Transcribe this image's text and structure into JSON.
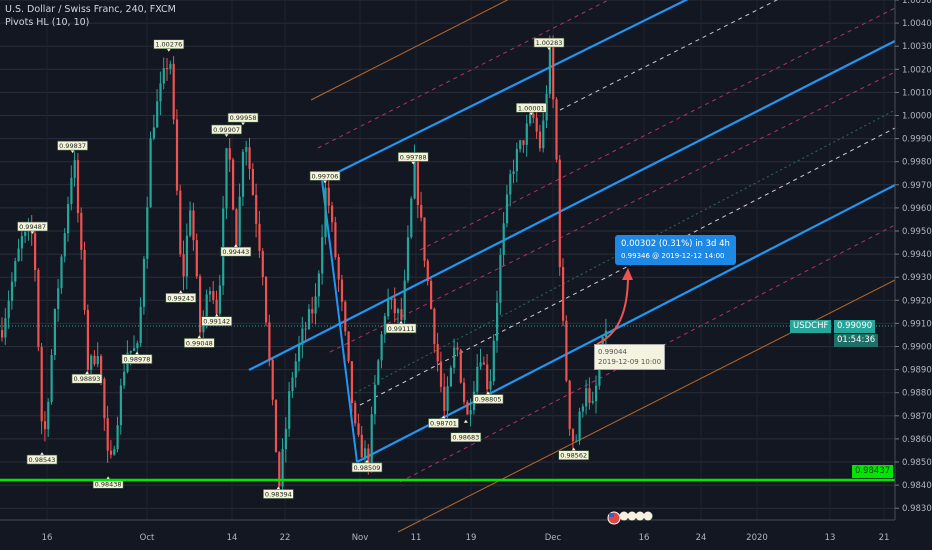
{
  "header": {
    "symbol_title": "U.S. Dollar / Swiss Franc, 240, FXCM",
    "indicator": "Pivots HL (10, 10)"
  },
  "price_axis": {
    "labels": [
      "1.00500",
      "1.00400",
      "1.00300",
      "1.00200",
      "1.00100",
      "1.00000",
      "0.99900",
      "0.99800",
      "0.99700",
      "0.99600",
      "0.99500",
      "0.99400",
      "0.99300",
      "0.99200",
      "0.99100",
      "0.99000",
      "0.98900",
      "0.98800",
      "0.98700",
      "0.98600",
      "0.98500",
      "0.98400",
      "0.98300"
    ],
    "symbol_tag": "USDCHF",
    "last_price": "0.99090",
    "countdown": "01:54:36",
    "support_price": "0.98437"
  },
  "time_axis": {
    "ticks": [
      {
        "label": "16",
        "date": "2019-09-16"
      },
      {
        "label": "Oct",
        "date": "2019-10-01"
      },
      {
        "label": "14",
        "date": "2019-10-14"
      },
      {
        "label": "22",
        "date": "2019-10-22"
      },
      {
        "label": "Nov",
        "date": "2019-11-01"
      },
      {
        "label": "11",
        "date": "2019-11-11"
      },
      {
        "label": "19",
        "date": "2019-11-19"
      },
      {
        "label": "Dec",
        "date": "2019-12-01"
      },
      {
        "label": "16",
        "date": "2019-12-16"
      },
      {
        "label": "24",
        "date": "2019-12-24"
      },
      {
        "label": "2020",
        "date": "2020-01-01"
      },
      {
        "label": "13",
        "date": "2020-01-13"
      },
      {
        "label": "21",
        "date": "2020-01-21"
      }
    ]
  },
  "projection": {
    "line1": "0.00302 (0.31%) in 3d 4h",
    "line2": "0.99346 @ 2019-12-12  14:00",
    "start_price": "0.99044",
    "start_date": "2019-12-09 10:00"
  },
  "colors": {
    "up": "#26a69a",
    "down": "#ef5350",
    "channel": "#2196f3",
    "support": "#00e600",
    "last_price": "#26a69a",
    "fib_pink": "#b0306a",
    "fib_orange": "#b8692a",
    "tooltip": "#1e88e5"
  },
  "chart_data": {
    "type": "candlestick",
    "symbol": "USDCHF",
    "timeframe": "240",
    "ylim": [
      0.9825,
      1.005
    ],
    "grid": true,
    "path": [
      [
        "2019-09-09 00:00",
        0.99071
      ],
      [
        "2019-09-12 00:00",
        0.99461
      ],
      [
        "2019-09-13 20:00",
        0.99487
      ],
      [
        "2019-09-15 06:00",
        0.98543
      ],
      [
        "2019-09-17 06:00",
        0.99201
      ],
      [
        "2019-09-19 20:00",
        0.99837
      ],
      [
        "2019-09-21 18:00",
        0.99071
      ],
      [
        "2019-09-22 00:00",
        0.98893
      ],
      [
        "2019-09-23 12:00",
        0.99
      ],
      [
        "2019-09-25 04:00",
        0.98438
      ],
      [
        "2019-09-27 18:00",
        0.98985
      ],
      [
        "2019-09-29 12:00",
        0.98978
      ],
      [
        "2019-10-01 12:00",
        0.99937
      ],
      [
        "2019-10-04 08:00",
        1.00276
      ],
      [
        "2019-10-06 04:00",
        0.99243
      ],
      [
        "2019-10-07 12:00",
        0.99634
      ],
      [
        "2019-10-09 00:00",
        0.99048
      ],
      [
        "2019-10-10 12:00",
        0.99288
      ],
      [
        "2019-10-11 16:00",
        0.99142
      ],
      [
        "2019-10-13 04:00",
        0.99907
      ],
      [
        "2019-10-14 14:00",
        0.99443
      ],
      [
        "2019-10-15 16:00",
        0.99958
      ],
      [
        "2019-10-18 12:00",
        0.99331
      ],
      [
        "2019-10-20 02:00",
        0.98682
      ],
      [
        "2019-10-21 00:00",
        0.98394
      ],
      [
        "2019-10-22 16:00",
        0.98855
      ],
      [
        "2019-10-24 00:00",
        0.99028
      ],
      [
        "2019-10-26 00:00",
        0.99201
      ],
      [
        "2019-10-27 08:00",
        0.99706
      ],
      [
        "2019-10-29 08:00",
        0.99201
      ],
      [
        "2019-10-31 08:00",
        0.98595
      ],
      [
        "2019-11-02 06:00",
        0.98509
      ],
      [
        "2019-11-03 16:00",
        0.98855
      ],
      [
        "2019-11-05 12:00",
        0.99201
      ],
      [
        "2019-11-08 08:00",
        0.99111
      ],
      [
        "2019-11-10 12:00",
        0.99788
      ],
      [
        "2019-11-12 08:00",
        0.99331
      ],
      [
        "2019-11-15 00:00",
        0.98701
      ],
      [
        "2019-11-16 16:00",
        0.99028
      ],
      [
        "2019-11-18 06:00",
        0.98683
      ],
      [
        "2019-11-20 04:00",
        0.98985
      ],
      [
        "2019-11-21 12:00",
        0.98805
      ],
      [
        "2019-11-23 06:00",
        0.99418
      ],
      [
        "2019-11-24 18:00",
        0.99764
      ],
      [
        "2019-11-27 20:00",
        1.00001
      ],
      [
        "2019-11-29 02:00",
        0.99851
      ],
      [
        "2019-11-30 10:00",
        1.00283
      ],
      [
        "2019-12-01 08:00",
        0.99851
      ],
      [
        "2019-12-02 04:00",
        0.99201
      ],
      [
        "2019-12-03 12:00",
        0.98682
      ],
      [
        "2019-12-04 10:00",
        0.98562
      ],
      [
        "2019-12-06 06:00",
        0.98855
      ],
      [
        "2019-12-07 02:00",
        0.98682
      ],
      [
        "2019-12-09 14:00",
        0.9909
      ]
    ],
    "pivots": [
      {
        "label": "0.99487",
        "price": 0.99487,
        "date": "2019-09-13 20:00",
        "type": "high"
      },
      {
        "label": "0.98543",
        "price": 0.98543,
        "date": "2019-09-15 06:00",
        "type": "low"
      },
      {
        "label": "0.99837",
        "price": 0.99837,
        "date": "2019-09-19 20:00",
        "type": "high"
      },
      {
        "label": "0.98893",
        "price": 0.98893,
        "date": "2019-09-22 00:00",
        "type": "low"
      },
      {
        "label": "0.98438",
        "price": 0.98438,
        "date": "2019-09-25 04:00",
        "type": "low"
      },
      {
        "label": "0.98978",
        "price": 0.98978,
        "date": "2019-09-29 12:00",
        "type": "low"
      },
      {
        "label": "1.00276",
        "price": 1.00276,
        "date": "2019-10-04 08:00",
        "type": "high"
      },
      {
        "label": "0.99243",
        "price": 0.99243,
        "date": "2019-10-06 04:00",
        "type": "low"
      },
      {
        "label": "0.99048",
        "price": 0.99048,
        "date": "2019-10-09 00:00",
        "type": "low"
      },
      {
        "label": "0.99142",
        "price": 0.99142,
        "date": "2019-10-11 16:00",
        "type": "low"
      },
      {
        "label": "0.99907",
        "price": 0.99907,
        "date": "2019-10-13 04:00",
        "type": "high"
      },
      {
        "label": "0.99443",
        "price": 0.99443,
        "date": "2019-10-14 14:00",
        "type": "low"
      },
      {
        "label": "0.99958",
        "price": 0.99958,
        "date": "2019-10-15 16:00",
        "type": "high"
      },
      {
        "label": "0.98394",
        "price": 0.98394,
        "date": "2019-10-21 00:00",
        "type": "low"
      },
      {
        "label": "0.99706",
        "price": 0.99706,
        "date": "2019-10-27 08:00",
        "type": "high"
      },
      {
        "label": "0.98509",
        "price": 0.98509,
        "date": "2019-11-02 06:00",
        "type": "low"
      },
      {
        "label": "0.99111",
        "price": 0.99111,
        "date": "2019-11-08 08:00",
        "type": "low"
      },
      {
        "label": "0.99788",
        "price": 0.99788,
        "date": "2019-11-10 12:00",
        "type": "high"
      },
      {
        "label": "0.98701",
        "price": 0.98701,
        "date": "2019-11-15 00:00",
        "type": "low"
      },
      {
        "label": "0.98683",
        "price": 0.98683,
        "date": "2019-11-18 06:00",
        "type": "low"
      },
      {
        "label": "0.98805",
        "price": 0.98805,
        "date": "2019-11-21 12:00",
        "type": "low"
      },
      {
        "label": "1.00001",
        "price": 1.00001,
        "date": "2019-11-27 20:00",
        "type": "high"
      },
      {
        "label": "1.00283",
        "price": 1.00283,
        "date": "2019-11-30 10:00",
        "type": "high"
      },
      {
        "label": "0.98562",
        "price": 0.98562,
        "date": "2019-12-04 10:00",
        "type": "low"
      }
    ]
  }
}
